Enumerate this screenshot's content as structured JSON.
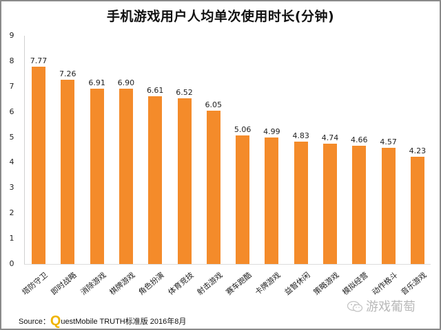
{
  "chart_data": {
    "type": "bar",
    "title": "手机游戏用户人均单次使用时长(分钟)",
    "xlabel": "",
    "ylabel": "",
    "ylim": [
      0,
      9
    ],
    "yticks": [
      "0",
      "1",
      "2",
      "3",
      "4",
      "5",
      "6",
      "7",
      "8",
      "9"
    ],
    "grid": false,
    "legend": null,
    "bar_color": "#f48b2a",
    "categories": [
      "塔防守卫",
      "即时战略",
      "消除游戏",
      "棋牌游戏",
      "角色扮演",
      "体育竞技",
      "射击游戏",
      "赛车跑酷",
      "卡牌游戏",
      "益智休闲",
      "策略游戏",
      "模拟经营",
      "动作格斗",
      "音乐游戏"
    ],
    "values": [
      7.77,
      7.26,
      6.91,
      6.9,
      6.61,
      6.52,
      6.05,
      5.06,
      4.99,
      4.83,
      4.74,
      4.66,
      4.57,
      4.23
    ],
    "value_labels": [
      "7.77",
      "7.26",
      "6.91",
      "6.90",
      "6.61",
      "6.52",
      "6.05",
      "5.06",
      "4.99",
      "4.83",
      "4.74",
      "4.66",
      "4.57",
      "4.23"
    ]
  },
  "footer": {
    "source_prefix": "Source：",
    "source_q": "Q",
    "source_rest": "uestMobile TRUTH标准版 2016年8月",
    "watermark": "游戏葡萄",
    "watermark_icon": "wechat-icon"
  }
}
